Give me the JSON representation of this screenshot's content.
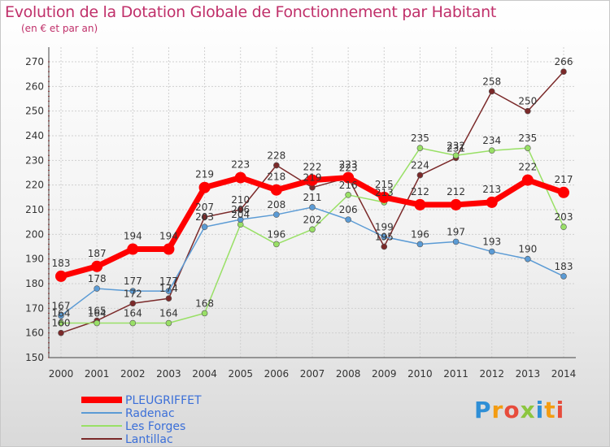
{
  "title": "Evolution de la Dotation Globale de Fonctionnement par Habitant",
  "subtitle": "(en € et par an)",
  "logo": {
    "text": "Proxiti",
    "colors": [
      "#2f8fd6",
      "#f39c12",
      "#e74c3c",
      "#8cc63f",
      "#2f8fd6",
      "#f39c12",
      "#e74c3c"
    ]
  },
  "chart_data": {
    "type": "line",
    "categories": [
      "2000",
      "2001",
      "2002",
      "2003",
      "2004",
      "2005",
      "2006",
      "2007",
      "2008",
      "2009",
      "2010",
      "2011",
      "2012",
      "2013",
      "2014"
    ],
    "ylim": [
      150,
      270
    ],
    "yticks": [
      150,
      160,
      170,
      180,
      190,
      200,
      210,
      220,
      230,
      240,
      250,
      260,
      270
    ],
    "grid": true,
    "legend_position": "bottom-left",
    "series": [
      {
        "name": "PLEUGRIFFET",
        "color": "#ff0000",
        "values": [
          183,
          187,
          194,
          194,
          219,
          223,
          218,
          222,
          223,
          215,
          212,
          212,
          213,
          222,
          217
        ]
      },
      {
        "name": "Radenac",
        "color": "#5b9bd5",
        "values": [
          167,
          178,
          177,
          177,
          203,
          206,
          208,
          211,
          206,
          199,
          196,
          197,
          193,
          190,
          183
        ]
      },
      {
        "name": "Les Forges",
        "color": "#99e066",
        "values": [
          164,
          164,
          164,
          164,
          168,
          204,
          196,
          202,
          216,
          213,
          235,
          232,
          234,
          235,
          203
        ]
      },
      {
        "name": "Lantillac",
        "color": "#7b2a2a",
        "values": [
          160,
          165,
          172,
          174,
          207,
          210,
          228,
          219,
          223,
          195,
          224,
          231,
          258,
          250,
          266
        ]
      }
    ]
  }
}
